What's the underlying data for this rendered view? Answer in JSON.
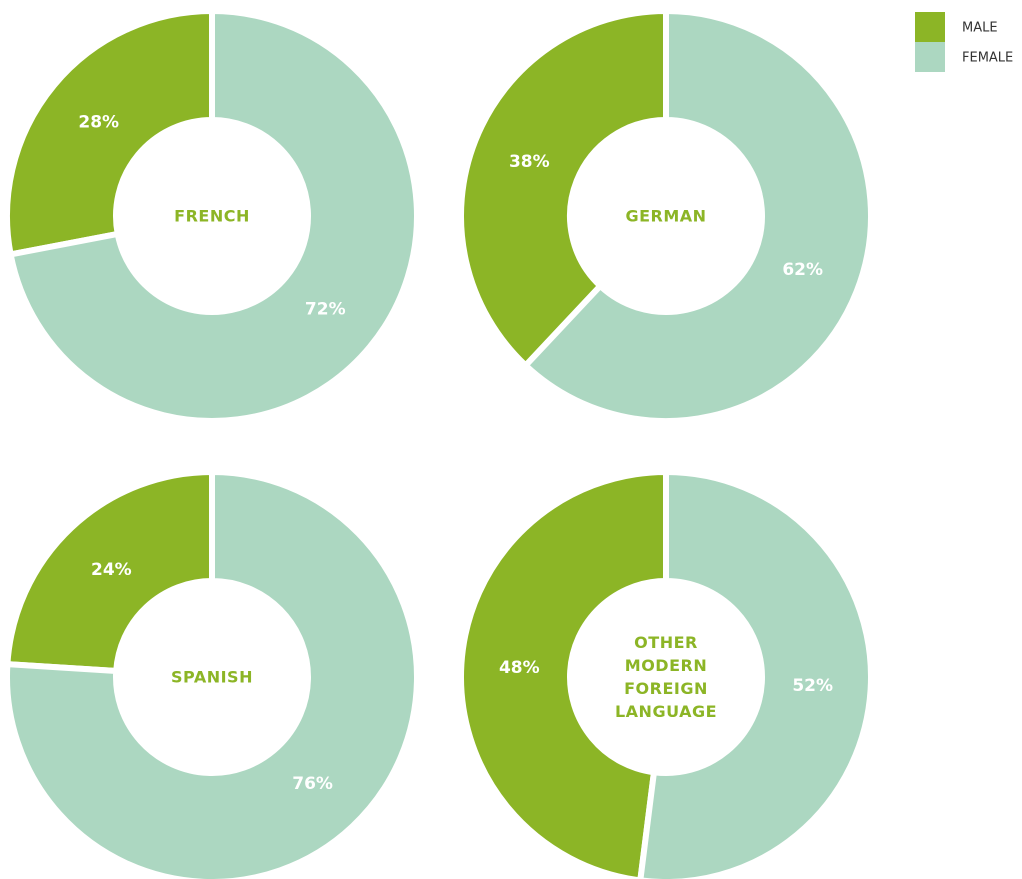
{
  "chart_data": [
    {
      "type": "pie",
      "title": "FRENCH",
      "categories": [
        "MALE",
        "FEMALE"
      ],
      "values": [
        28,
        72
      ],
      "value_labels": [
        "28%",
        "72%"
      ],
      "colors": [
        "#8cb526",
        "#acd7c1"
      ]
    },
    {
      "type": "pie",
      "title": "GERMAN",
      "categories": [
        "MALE",
        "FEMALE"
      ],
      "values": [
        38,
        62
      ],
      "value_labels": [
        "38%",
        "62%"
      ],
      "colors": [
        "#8cb526",
        "#acd7c1"
      ]
    },
    {
      "type": "pie",
      "title": "SPANISH",
      "categories": [
        "MALE",
        "FEMALE"
      ],
      "values": [
        24,
        76
      ],
      "value_labels": [
        "24%",
        "76%"
      ],
      "colors": [
        "#8cb526",
        "#acd7c1"
      ]
    },
    {
      "type": "pie",
      "title": "OTHER MODERN FOREIGN LANGUAGE",
      "categories": [
        "MALE",
        "FEMALE"
      ],
      "values": [
        48,
        52
      ],
      "value_labels": [
        "48%",
        "52%"
      ],
      "colors": [
        "#8cb526",
        "#acd7c1"
      ]
    }
  ]
}
